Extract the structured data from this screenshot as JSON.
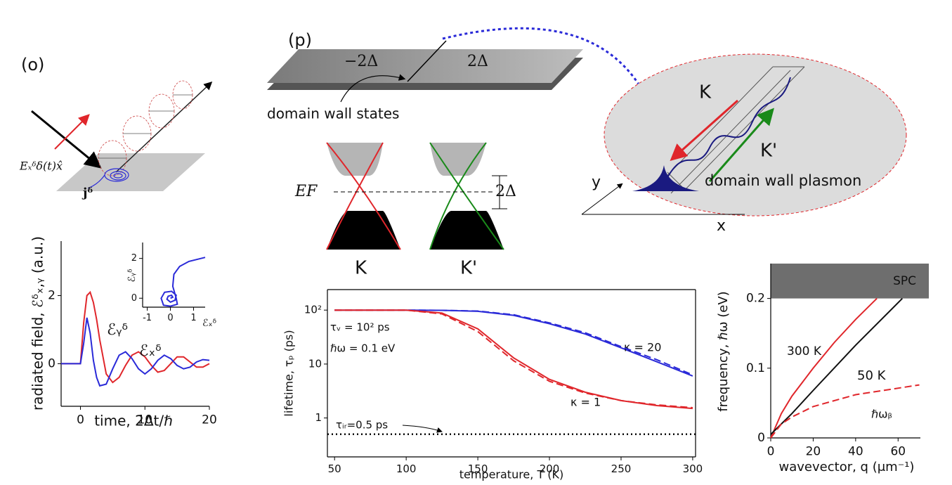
{
  "panels": {
    "o": "(o)",
    "p": "(p)"
  },
  "diagram_o": {
    "field": "Eₓᵟδ(t)x̂",
    "current": "jᵟ"
  },
  "diagram_p": {
    "slab_left": "−2Δ",
    "slab_right": "2Δ",
    "wall_label": "domain wall states",
    "fermi": "EF",
    "gap": "2Δ",
    "valley_k": "K",
    "valley_kp": "K'",
    "plasmon_k": "K",
    "plasmon_kp": "K'",
    "plasmon_label": "domain wall plasmon",
    "axis_x": "x",
    "axis_y": "y"
  },
  "chart_data": [
    {
      "type": "line",
      "xlabel": "time, 2Δt/ℏ",
      "ylabel": "radiated field, ℰᵟₓ,ᵧ (a.u.)",
      "x": [
        -3,
        0,
        0.5,
        1,
        1.5,
        2,
        2.5,
        3,
        4,
        5,
        6,
        7,
        8,
        9,
        10,
        11,
        12,
        13,
        14,
        15,
        16,
        17,
        18,
        19,
        20
      ],
      "xlim": [
        -3,
        20
      ],
      "xticks": [
        0,
        10,
        20
      ],
      "ylim": [
        -1.25,
        3.6
      ],
      "yticks": [
        0,
        2
      ],
      "series": [
        {
          "name": "ℰᵧᵟ",
          "color": "#e0262b",
          "values": [
            0,
            0,
            1.2,
            2.0,
            2.1,
            1.8,
            1.3,
            0.7,
            -0.3,
            -0.55,
            -0.4,
            -0.05,
            0.25,
            0.35,
            0.2,
            -0.05,
            -0.25,
            -0.2,
            0.0,
            0.2,
            0.2,
            0.05,
            -0.1,
            -0.1,
            0.0
          ]
        },
        {
          "name": "ℰₓᵟ",
          "color": "#2a2ad8",
          "values": [
            0,
            0,
            0.6,
            1.35,
            0.9,
            0.1,
            -0.4,
            -0.65,
            -0.6,
            -0.15,
            0.25,
            0.35,
            0.15,
            -0.15,
            -0.3,
            -0.15,
            0.1,
            0.25,
            0.15,
            -0.05,
            -0.15,
            -0.1,
            0.05,
            0.12,
            0.1
          ]
        }
      ]
    },
    {
      "type": "line",
      "xlabel": "ℰₓᵟ",
      "ylabel": "ℰᵧᵟ",
      "x": [
        0,
        0.1,
        0.05,
        -0.1,
        -0.15,
        0,
        0.2,
        0.25,
        0.05,
        -0.25,
        -0.4,
        -0.3,
        0,
        0.3,
        0.25,
        0.1,
        0.15,
        0.4,
        0.8,
        1.5
      ],
      "xlim": [
        -1.2,
        1.5
      ],
      "xticks": [
        -1,
        0,
        1
      ],
      "ylim": [
        -0.45,
        2.8
      ],
      "yticks": [
        0,
        2
      ],
      "series": [
        {
          "color": "#2a2ad8",
          "values": [
            0,
            0.05,
            0.15,
            0.1,
            -0.05,
            -0.2,
            -0.1,
            0.15,
            0.35,
            0.3,
            0,
            -0.35,
            -0.4,
            -0.3,
            0,
            0.6,
            1.2,
            1.6,
            1.85,
            2.05
          ]
        }
      ]
    },
    {
      "type": "line",
      "xlabel": "temperature, T (K)",
      "ylabel": "lifetime, τₚ (ps)",
      "yscale": "log",
      "x": [
        50,
        75,
        100,
        125,
        150,
        175,
        200,
        225,
        250,
        275,
        300
      ],
      "xlim": [
        45,
        302
      ],
      "xticks": [
        50,
        100,
        150,
        200,
        250,
        300
      ],
      "ylim": [
        0.19,
        240
      ],
      "yticks": [
        1,
        10,
        {
          "value": 100,
          "label": "10²"
        }
      ],
      "series": [
        {
          "name": "κ = 20",
          "color": "#2a2ad8",
          "style": "solid",
          "values": [
            100,
            100,
            100,
            99,
            95,
            80,
            56,
            36,
            20,
            11,
            6
          ]
        },
        {
          "color": "#2a2ad8",
          "style": "dashed",
          "values": [
            100,
            100,
            100,
            99,
            96,
            82,
            58,
            38,
            21,
            12,
            6.3
          ]
        },
        {
          "name": "κ = 1",
          "color": "#e0262b",
          "style": "solid",
          "values": [
            100,
            100,
            100,
            88,
            45,
            13,
            5.2,
            3,
            2.1,
            1.7,
            1.5
          ]
        },
        {
          "color": "#e0262b",
          "style": "dashed",
          "values": [
            100,
            100,
            100,
            85,
            40,
            11.5,
            4.8,
            2.9,
            2.1,
            1.75,
            1.55
          ]
        }
      ],
      "reference_line": {
        "value": 0.5,
        "style": "dotted",
        "color": "#000"
      },
      "annotations": [
        "τᵥ = 10² ps",
        "ℏω =  0.1 eV",
        "τᵢᵣ=0.5 ps"
      ]
    },
    {
      "type": "line",
      "xlabel": "wavevector, q (μm⁻¹)",
      "ylabel": "frequency, ℏω (eV)",
      "xlim": [
        0,
        70.5
      ],
      "xticks": [
        0,
        20,
        40,
        60
      ],
      "ylim": [
        0,
        0.25
      ],
      "yticks": [
        0,
        0.1,
        0.2
      ],
      "bands": [
        {
          "label": "SPC",
          "range": [
            0.2,
            0.25
          ],
          "color": "#6e6e6e"
        }
      ],
      "series": [
        {
          "name": "300 K",
          "color": "#e0262b",
          "style": "solid",
          "x": [
            0,
            5,
            10,
            20,
            30,
            40,
            50
          ],
          "values": [
            0,
            0.035,
            0.06,
            0.1,
            0.137,
            0.17,
            0.2
          ]
        },
        {
          "name": "50 K",
          "color": "#111111",
          "style": "solid",
          "x": [
            0,
            10,
            20,
            40,
            62
          ],
          "values": [
            0.005,
            0.035,
            0.068,
            0.133,
            0.2
          ]
        },
        {
          "name": "ℏωᵦ",
          "color": "#e0262b",
          "style": "dashed",
          "x": [
            0,
            5,
            10,
            20,
            40,
            70
          ],
          "values": [
            0,
            0.02,
            0.03,
            0.045,
            0.062,
            0.076
          ]
        }
      ]
    }
  ]
}
